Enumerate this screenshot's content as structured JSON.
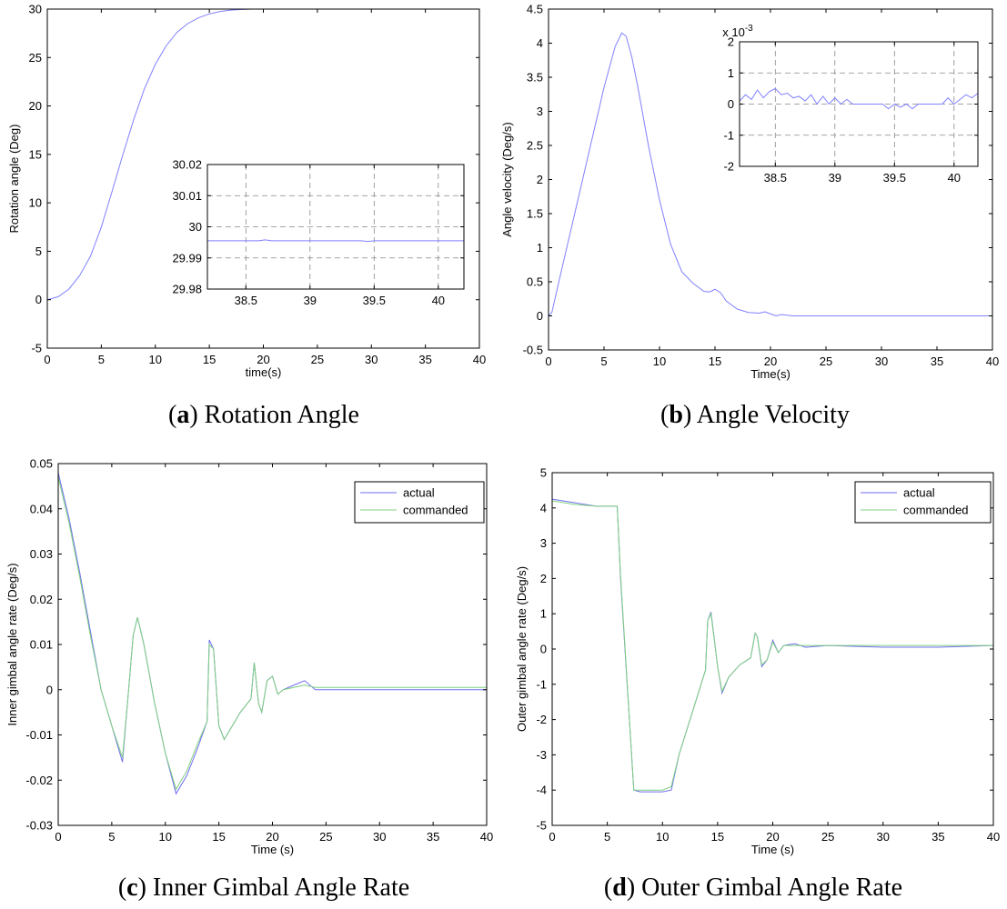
{
  "chart_data": [
    {
      "id": "a",
      "type": "line",
      "caption_letter": "a",
      "caption_text": "Rotation Angle",
      "xlabel": "time(s)",
      "ylabel": "Rotation angle (Deg)",
      "xlim": [
        0,
        40
      ],
      "ylim": [
        -5,
        30
      ],
      "xticks": [
        0,
        5,
        10,
        15,
        20,
        25,
        30,
        35,
        40
      ],
      "yticks": [
        -5,
        0,
        5,
        10,
        15,
        20,
        25,
        30
      ],
      "grid": false,
      "series": [
        {
          "name": "rotation angle",
          "color": "#8080ff",
          "x": [
            0,
            1,
            2,
            3,
            4,
            5,
            6,
            7,
            8,
            9,
            10,
            11,
            12,
            13,
            14,
            15,
            16,
            17,
            18,
            19,
            20,
            25,
            30,
            35,
            40
          ],
          "y": [
            0,
            0.3,
            1.1,
            2.5,
            4.5,
            7.5,
            11.2,
            15.0,
            18.6,
            21.8,
            24.3,
            26.2,
            27.6,
            28.5,
            29.1,
            29.5,
            29.75,
            29.9,
            29.96,
            30.0,
            30.0,
            30.0,
            30.0,
            30.0,
            30.0
          ]
        }
      ],
      "inset": {
        "xlim": [
          38.2,
          40.2
        ],
        "ylim": [
          29.98,
          30.02
        ],
        "xticks": [
          38.5,
          39,
          39.5,
          40
        ],
        "yticks": [
          29.98,
          29.99,
          30,
          30.01,
          30.02
        ],
        "ytick_labels": [
          "29.98",
          "29.99",
          "30",
          "30.01",
          "30.02"
        ],
        "grid": true,
        "exponent_label": "",
        "series": [
          {
            "color": "#8080ff",
            "x": [
              38.2,
              38.6,
              38.65,
              38.7,
              39.0,
              39.4,
              39.45,
              39.5,
              40.2
            ],
            "y": [
              29.9955,
              29.9955,
              29.9958,
              29.9955,
              29.9955,
              29.9955,
              29.9953,
              29.9955,
              29.9955
            ]
          }
        ]
      }
    },
    {
      "id": "b",
      "type": "line",
      "caption_letter": "b",
      "caption_text": "Angle Velocity",
      "xlabel": "Time(s)",
      "ylabel": "Angle velocity (Deg/s)",
      "xlim": [
        0,
        40
      ],
      "ylim": [
        -0.5,
        4.5
      ],
      "xticks": [
        0,
        5,
        10,
        15,
        20,
        25,
        30,
        35,
        40
      ],
      "yticks": [
        -0.5,
        0,
        0.5,
        1,
        1.5,
        2,
        2.5,
        3,
        3.5,
        4,
        4.5
      ],
      "grid": false,
      "series": [
        {
          "name": "angle velocity",
          "color": "#8080ff",
          "x": [
            0,
            0.3,
            1,
            2,
            3,
            4,
            5,
            6,
            6.6,
            7,
            7.5,
            8,
            9,
            10,
            11,
            12,
            13,
            14,
            14.5,
            15,
            15.5,
            16,
            17,
            18,
            19,
            19.5,
            20,
            20.5,
            21,
            22,
            25,
            30,
            35,
            40
          ],
          "y": [
            0,
            0.05,
            0.55,
            1.25,
            1.95,
            2.65,
            3.35,
            3.95,
            4.15,
            4.1,
            3.8,
            3.4,
            2.5,
            1.7,
            1.05,
            0.65,
            0.48,
            0.36,
            0.35,
            0.39,
            0.34,
            0.22,
            0.1,
            0.05,
            0.04,
            0.06,
            0.03,
            0.0,
            0.02,
            0.0,
            0.0,
            0.0,
            0.0,
            0.0
          ]
        }
      ],
      "inset": {
        "xlim": [
          38.2,
          40.2
        ],
        "ylim": [
          -2,
          2
        ],
        "xticks": [
          38.5,
          39,
          39.5,
          40
        ],
        "yticks": [
          -2,
          -1,
          0,
          1,
          2
        ],
        "ytick_labels": [
          "-2",
          "-1",
          "0",
          "1",
          "2"
        ],
        "grid": true,
        "exponent_label": "x 10",
        "exponent_power": "-3",
        "series": [
          {
            "color": "#8080ff",
            "x": [
              38.2,
              38.25,
              38.3,
              38.35,
              38.4,
              38.45,
              38.5,
              38.55,
              38.6,
              38.65,
              38.7,
              38.75,
              38.8,
              38.85,
              38.9,
              38.95,
              39.0,
              39.05,
              39.1,
              39.15,
              39.2,
              39.3,
              39.4,
              39.45,
              39.5,
              39.55,
              39.6,
              39.65,
              39.7,
              39.8,
              39.9,
              39.95,
              40.0,
              40.05,
              40.1,
              40.15,
              40.2
            ],
            "y": [
              0.1,
              0.3,
              0.15,
              0.45,
              0.2,
              0.4,
              0.5,
              0.3,
              0.35,
              0.2,
              0.25,
              0.1,
              0.3,
              0.0,
              0.25,
              0.0,
              0.2,
              0.0,
              0.15,
              0.0,
              0.0,
              0.0,
              0.0,
              -0.15,
              0.0,
              -0.1,
              0.0,
              -0.15,
              0.0,
              0.0,
              0.0,
              0.2,
              0.0,
              0.15,
              0.3,
              0.2,
              0.35
            ]
          }
        ]
      }
    },
    {
      "id": "c",
      "type": "line",
      "caption_letter": "c",
      "caption_text": "Inner Gimbal Angle Rate",
      "xlabel": "Time (s)",
      "ylabel": "Inner gimbal angle rate (Deg/s)",
      "xlim": [
        0,
        40
      ],
      "ylim": [
        -0.03,
        0.05
      ],
      "xticks": [
        0,
        5,
        10,
        15,
        20,
        25,
        30,
        35,
        40
      ],
      "yticks": [
        -0.03,
        -0.02,
        -0.01,
        0,
        0.01,
        0.02,
        0.03,
        0.04,
        0.05
      ],
      "ytick_labels": [
        "-0.03",
        "-0.02",
        "-0.01",
        "0",
        "0.01",
        "0.02",
        "0.03",
        "0.04",
        "0.05"
      ],
      "grid": false,
      "legend": {
        "position": "top-right",
        "entries": [
          "actual",
          "commanded"
        ]
      },
      "series": [
        {
          "name": "actual",
          "color": "#6f6ff0",
          "x": [
            0,
            1,
            2,
            3,
            4,
            5,
            6,
            6.5,
            7,
            7.4,
            8,
            9,
            10,
            11,
            12,
            13,
            13.9,
            14.1,
            14.5,
            15,
            15.5,
            16,
            17,
            18,
            18.3,
            18.7,
            19,
            19.5,
            20,
            20.5,
            21,
            22,
            23,
            24,
            25,
            30,
            35,
            40
          ],
          "y": [
            0.048,
            0.038,
            0.026,
            0.013,
            0.0,
            -0.008,
            -0.016,
            -0.002,
            0.012,
            0.016,
            0.01,
            -0.003,
            -0.014,
            -0.023,
            -0.019,
            -0.013,
            -0.007,
            0.011,
            0.009,
            -0.008,
            -0.011,
            -0.009,
            -0.005,
            -0.002,
            0.006,
            -0.003,
            -0.005,
            0.002,
            0.003,
            -0.001,
            0.0,
            0.001,
            0.002,
            0.0,
            0.0,
            0.0,
            0.0,
            0.0
          ]
        },
        {
          "name": "commanded",
          "color": "#80d080",
          "x": [
            0,
            1,
            2,
            3,
            4,
            5,
            6,
            6.5,
            7,
            7.4,
            8,
            9,
            10,
            11,
            12,
            13,
            13.9,
            14.1,
            14.5,
            15,
            15.5,
            16,
            17,
            18,
            18.3,
            18.7,
            19,
            19.5,
            20,
            20.5,
            21,
            22,
            23,
            24,
            25,
            30,
            35,
            40
          ],
          "y": [
            0.047,
            0.037,
            0.025,
            0.012,
            0.0,
            -0.008,
            -0.015,
            -0.002,
            0.012,
            0.016,
            0.01,
            -0.003,
            -0.014,
            -0.022,
            -0.018,
            -0.012,
            -0.007,
            0.01,
            0.009,
            -0.008,
            -0.011,
            -0.009,
            -0.005,
            -0.002,
            0.006,
            -0.003,
            -0.005,
            0.002,
            0.003,
            -0.001,
            0.0,
            0.0005,
            0.001,
            0.0005,
            0.0005,
            0.0005,
            0.0005,
            0.0005
          ]
        }
      ]
    },
    {
      "id": "d",
      "type": "line",
      "caption_letter": "d",
      "caption_text": "Outer Gimbal Angle Rate",
      "xlabel": "Time (s)",
      "ylabel": "Outer gimbal angle rate (Deg/s)",
      "xlim": [
        0,
        40
      ],
      "ylim": [
        -5,
        5
      ],
      "xticks": [
        0,
        5,
        10,
        15,
        20,
        25,
        30,
        35,
        40
      ],
      "yticks": [
        -5,
        -4,
        -3,
        -2,
        -1,
        0,
        1,
        2,
        3,
        4,
        5
      ],
      "grid": false,
      "legend": {
        "position": "top-right",
        "entries": [
          "actual",
          "commanded"
        ]
      },
      "series": [
        {
          "name": "actual",
          "color": "#6f6ff0",
          "x": [
            0,
            2,
            4,
            5.9,
            6.2,
            7.4,
            8,
            10,
            10.8,
            11.5,
            12,
            13,
            13.9,
            14.1,
            14.4,
            15,
            15.4,
            16,
            17,
            18,
            18.4,
            18.6,
            19,
            19.5,
            20,
            20.5,
            21,
            22,
            23,
            25,
            30,
            35,
            40
          ],
          "y": [
            4.25,
            4.15,
            4.05,
            4.05,
            2.0,
            -4.0,
            -4.05,
            -4.05,
            -4.0,
            -3.0,
            -2.5,
            -1.5,
            -0.6,
            0.8,
            1.05,
            -0.5,
            -1.25,
            -0.8,
            -0.45,
            -0.25,
            0.45,
            0.35,
            -0.5,
            -0.3,
            0.25,
            -0.1,
            0.1,
            0.15,
            0.05,
            0.1,
            0.05,
            0.05,
            0.1
          ]
        },
        {
          "name": "commanded",
          "color": "#80d080",
          "x": [
            0,
            2,
            4,
            5.9,
            6.2,
            7.4,
            8,
            10,
            10.8,
            11.5,
            12,
            13,
            13.9,
            14.1,
            14.4,
            15,
            15.4,
            16,
            17,
            18,
            18.4,
            18.6,
            19,
            19.5,
            20,
            20.5,
            21,
            22,
            23,
            25,
            30,
            35,
            40
          ],
          "y": [
            4.2,
            4.1,
            4.05,
            4.05,
            2.1,
            -4.0,
            -4.0,
            -4.0,
            -3.9,
            -3.0,
            -2.5,
            -1.5,
            -0.6,
            0.8,
            1.0,
            -0.5,
            -1.2,
            -0.8,
            -0.45,
            -0.25,
            0.45,
            0.35,
            -0.45,
            -0.3,
            0.2,
            -0.1,
            0.1,
            0.1,
            0.1,
            0.1,
            0.1,
            0.1,
            0.1
          ]
        }
      ]
    }
  ]
}
